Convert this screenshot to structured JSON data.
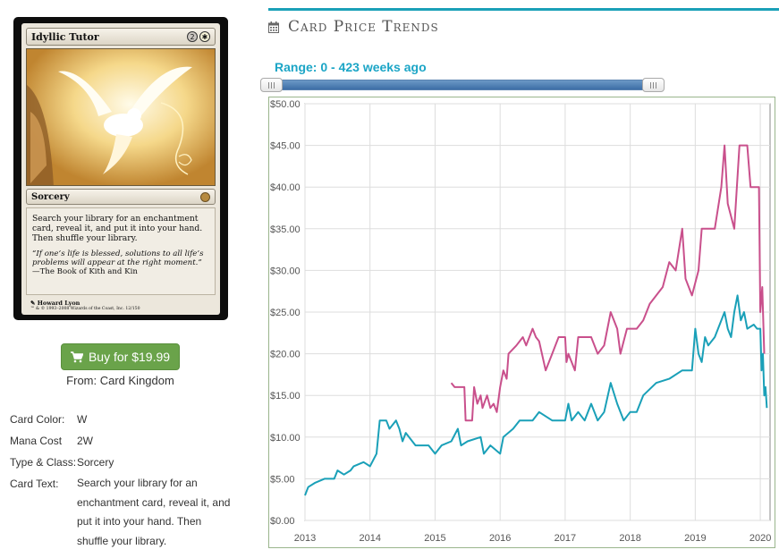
{
  "card": {
    "name": "Idyllic Tutor",
    "mana_cost_generic": "2",
    "mana_cost_color": "white",
    "type_line": "Sorcery",
    "rules_text": "Search your library for an enchantment card, reveal it, and put it into your hand. Then shuffle your library.",
    "flavor_text": "“If one’s life is blessed, solutions to all life’s problems will appear at the right moment.”",
    "flavor_source": "—The Book of Kith and Kin",
    "artist": "Howard Lyon",
    "copyright": "™ & © 1993–2008 Wizards of the Coast, Inc. 12/150"
  },
  "buy": {
    "label": "Buy for $19.99",
    "icon": "cart-icon",
    "from": "From: Card Kingdom",
    "color": "#6aa34a"
  },
  "details": [
    {
      "label": "Card Color:",
      "value": "W"
    },
    {
      "label": "Mana Cost",
      "value": "2W"
    },
    {
      "label": "Type & Class:",
      "value": "Sorcery"
    },
    {
      "label": "Card Text:",
      "value": "Search your library for an enchantment card, reveal it, and put it into your hand. Then shuffle your library."
    }
  ],
  "trends": {
    "title": "Card Price Trends",
    "icon": "calendar-icon",
    "range_label": "Range: 0 - 423 weeks ago",
    "accent": "#1aa0b8",
    "range_start_weeks": 423,
    "range_end_weeks": 0
  },
  "chart_data": {
    "type": "line",
    "xlabel": "",
    "ylabel": "",
    "xlim": [
      2013.0,
      2020.15
    ],
    "ylim": [
      0,
      50
    ],
    "x_ticks": [
      "2013",
      "2014",
      "2015",
      "2016",
      "2017",
      "2018",
      "2019",
      "2020"
    ],
    "y_ticks": [
      "$0.00",
      "$5.00",
      "$10.00",
      "$15.00",
      "$20.00",
      "$25.00",
      "$30.00",
      "$35.00",
      "$40.00",
      "$45.00",
      "$50.00"
    ],
    "grid": true,
    "series": [
      {
        "color": "#c9508c",
        "points": [
          [
            2015.25,
            16.5
          ],
          [
            2015.3,
            16.0
          ],
          [
            2015.45,
            16.0
          ],
          [
            2015.47,
            12.0
          ],
          [
            2015.57,
            12.0
          ],
          [
            2015.6,
            16.0
          ],
          [
            2015.65,
            14.0
          ],
          [
            2015.7,
            15.0
          ],
          [
            2015.73,
            13.5
          ],
          [
            2015.8,
            15.0
          ],
          [
            2015.85,
            13.5
          ],
          [
            2015.9,
            14.0
          ],
          [
            2015.95,
            13.0
          ],
          [
            2016.0,
            16.0
          ],
          [
            2016.05,
            18.0
          ],
          [
            2016.1,
            17.0
          ],
          [
            2016.13,
            20.0
          ],
          [
            2016.25,
            21.0
          ],
          [
            2016.35,
            22.0
          ],
          [
            2016.4,
            21.0
          ],
          [
            2016.5,
            23.0
          ],
          [
            2016.55,
            22.0
          ],
          [
            2016.6,
            21.5
          ],
          [
            2016.7,
            18.0
          ],
          [
            2016.8,
            20.0
          ],
          [
            2016.9,
            22.0
          ],
          [
            2017.0,
            22.0
          ],
          [
            2017.02,
            19.0
          ],
          [
            2017.05,
            20.0
          ],
          [
            2017.15,
            18.0
          ],
          [
            2017.2,
            22.0
          ],
          [
            2017.4,
            22.0
          ],
          [
            2017.5,
            20.0
          ],
          [
            2017.6,
            21.0
          ],
          [
            2017.7,
            25.0
          ],
          [
            2017.8,
            23.0
          ],
          [
            2017.85,
            20.0
          ],
          [
            2017.95,
            23.0
          ],
          [
            2018.1,
            23.0
          ],
          [
            2018.2,
            24.0
          ],
          [
            2018.3,
            26.0
          ],
          [
            2018.5,
            28.0
          ],
          [
            2018.6,
            31.0
          ],
          [
            2018.7,
            30.0
          ],
          [
            2018.8,
            35.0
          ],
          [
            2018.85,
            29.0
          ],
          [
            2018.95,
            27.0
          ],
          [
            2019.05,
            30.0
          ],
          [
            2019.1,
            35.0
          ],
          [
            2019.3,
            35.0
          ],
          [
            2019.4,
            40.0
          ],
          [
            2019.45,
            45.0
          ],
          [
            2019.5,
            38.0
          ],
          [
            2019.6,
            35.0
          ],
          [
            2019.68,
            45.0
          ],
          [
            2019.8,
            45.0
          ],
          [
            2019.85,
            40.0
          ],
          [
            2019.98,
            40.0
          ],
          [
            2020.0,
            25.0
          ],
          [
            2020.03,
            28.0
          ],
          [
            2020.06,
            20.0
          ]
        ]
      },
      {
        "color": "#1aa0b8",
        "points": [
          [
            2013.0,
            3.0
          ],
          [
            2013.05,
            4.0
          ],
          [
            2013.15,
            4.5
          ],
          [
            2013.3,
            5.0
          ],
          [
            2013.45,
            5.0
          ],
          [
            2013.5,
            6.0
          ],
          [
            2013.6,
            5.5
          ],
          [
            2013.7,
            6.0
          ],
          [
            2013.75,
            6.5
          ],
          [
            2013.9,
            7.0
          ],
          [
            2014.0,
            6.5
          ],
          [
            2014.1,
            8.0
          ],
          [
            2014.15,
            12.0
          ],
          [
            2014.25,
            12.0
          ],
          [
            2014.3,
            11.0
          ],
          [
            2014.4,
            12.0
          ],
          [
            2014.45,
            11.0
          ],
          [
            2014.5,
            9.5
          ],
          [
            2014.55,
            10.5
          ],
          [
            2014.7,
            9.0
          ],
          [
            2014.9,
            9.0
          ],
          [
            2015.0,
            8.0
          ],
          [
            2015.1,
            9.0
          ],
          [
            2015.25,
            9.5
          ],
          [
            2015.35,
            11.0
          ],
          [
            2015.4,
            9.0
          ],
          [
            2015.5,
            9.5
          ],
          [
            2015.7,
            10.0
          ],
          [
            2015.75,
            8.0
          ],
          [
            2015.85,
            9.0
          ],
          [
            2016.0,
            8.0
          ],
          [
            2016.05,
            10.0
          ],
          [
            2016.2,
            11.0
          ],
          [
            2016.3,
            12.0
          ],
          [
            2016.5,
            12.0
          ],
          [
            2016.6,
            13.0
          ],
          [
            2016.8,
            12.0
          ],
          [
            2017.0,
            12.0
          ],
          [
            2017.05,
            14.0
          ],
          [
            2017.1,
            12.0
          ],
          [
            2017.2,
            13.0
          ],
          [
            2017.3,
            12.0
          ],
          [
            2017.4,
            14.0
          ],
          [
            2017.5,
            12.0
          ],
          [
            2017.6,
            13.0
          ],
          [
            2017.7,
            16.5
          ],
          [
            2017.8,
            14.0
          ],
          [
            2017.9,
            12.0
          ],
          [
            2018.0,
            13.0
          ],
          [
            2018.1,
            13.0
          ],
          [
            2018.2,
            15.0
          ],
          [
            2018.4,
            16.5
          ],
          [
            2018.6,
            17.0
          ],
          [
            2018.8,
            18.0
          ],
          [
            2018.95,
            18.0
          ],
          [
            2019.0,
            23.0
          ],
          [
            2019.05,
            20.0
          ],
          [
            2019.1,
            19.0
          ],
          [
            2019.15,
            22.0
          ],
          [
            2019.2,
            21.0
          ],
          [
            2019.3,
            22.0
          ],
          [
            2019.4,
            24.0
          ],
          [
            2019.45,
            25.0
          ],
          [
            2019.5,
            23.0
          ],
          [
            2019.55,
            22.0
          ],
          [
            2019.6,
            25.0
          ],
          [
            2019.65,
            27.0
          ],
          [
            2019.7,
            24.0
          ],
          [
            2019.75,
            25.0
          ],
          [
            2019.8,
            23.0
          ],
          [
            2019.9,
            23.5
          ],
          [
            2019.95,
            23.0
          ],
          [
            2020.0,
            23.0
          ],
          [
            2020.02,
            18.0
          ],
          [
            2020.04,
            20.0
          ],
          [
            2020.06,
            15.0
          ],
          [
            2020.08,
            16.0
          ],
          [
            2020.1,
            13.5
          ]
        ]
      }
    ]
  }
}
